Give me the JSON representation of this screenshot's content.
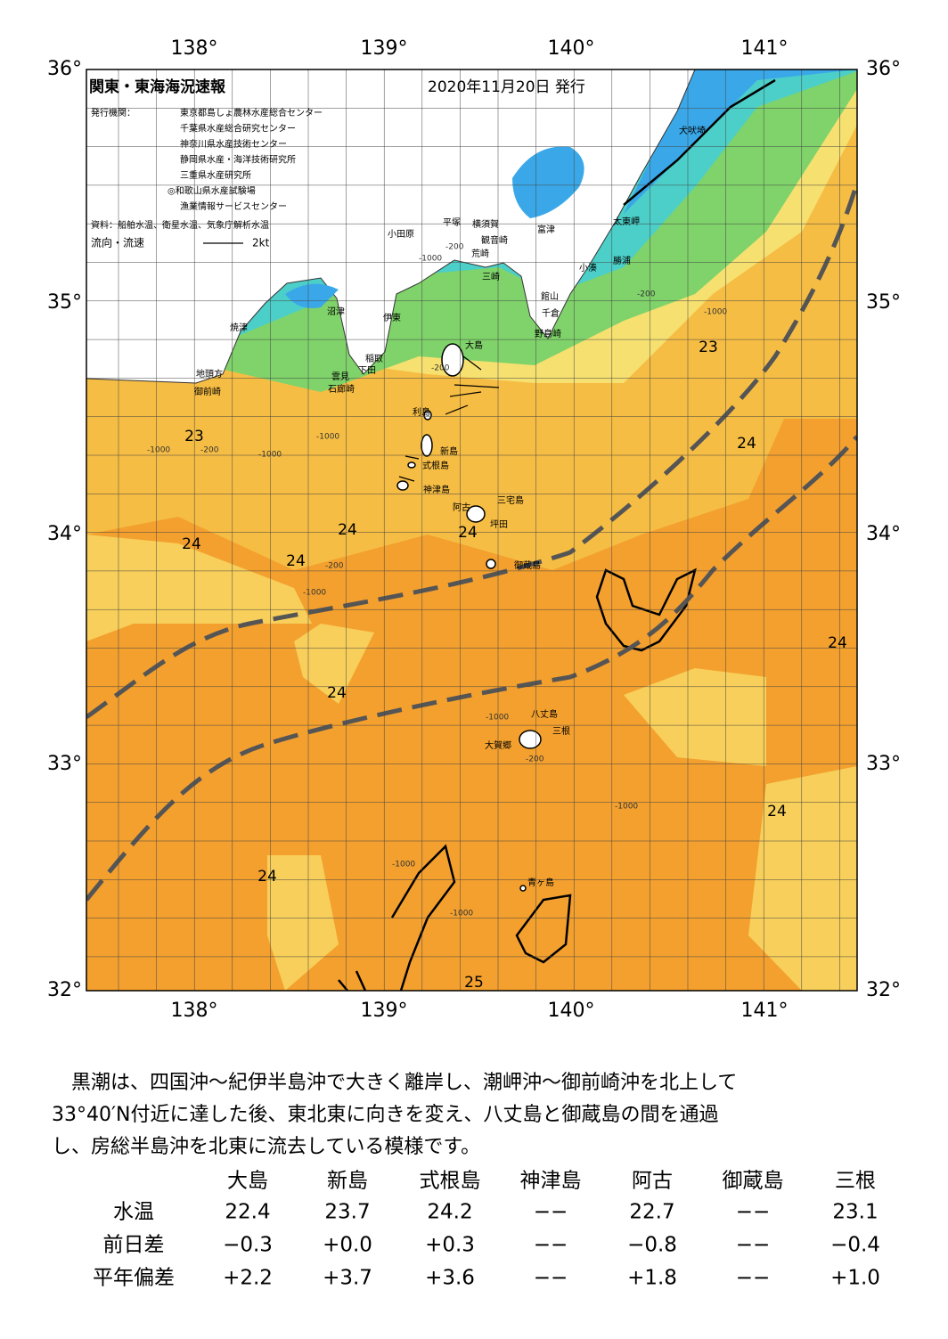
{
  "map": {
    "title": "関東・東海海況速報",
    "date": "2020年11月20日 発行",
    "issuer_label": "発行機関：",
    "issuers": [
      "東京都島しょ農林水産総合センター",
      "千葉県水産総合研究センター",
      "神奈川県水産技術センター",
      "静岡県水産・海洋技術研究所",
      "三重県水産研究所",
      "◎和歌山県水産試験場",
      "漁業情報サービスセンター"
    ],
    "source": "資料：船舶水温、衛星水温、気象庁解析水温",
    "current_label": "流向・流速",
    "current_scale": "2kt",
    "lon_labels": [
      "138°",
      "139°",
      "140°",
      "141°"
    ],
    "lat_labels": [
      "36°",
      "35°",
      "34°",
      "33°",
      "32°"
    ],
    "places": [
      "犬吠埼",
      "太東岬",
      "勝浦",
      "小湊",
      "富津",
      "横須賀",
      "観音崎",
      "平塚",
      "小田原",
      "荒崎",
      "三崎",
      "館山",
      "千倉",
      "野島崎",
      "沼津",
      "伊東",
      "焼津",
      "稲取",
      "下田",
      "雲見",
      "石廊崎",
      "地頭方",
      "御前崎",
      "大島",
      "利島",
      "新島",
      "式根島",
      "神津島",
      "三宅島",
      "阿古",
      "坪田",
      "御蔵島",
      "八丈島",
      "三根",
      "大賀郷",
      "青ヶ島"
    ],
    "temp_labels": [
      23,
      23,
      24,
      24,
      24,
      24,
      24,
      24,
      24,
      24,
      24,
      25
    ],
    "contour_labels": [
      "-1000",
      "-200",
      "-1000",
      "-200",
      "-1000",
      "-200",
      "-1000",
      "-1000",
      "-200",
      "-1000",
      "-200",
      "-1000",
      "-1000",
      "-1000",
      "-200",
      "-1000"
    ]
  },
  "text": {
    "paragraph": [
      "黒潮は、四国沖～紀伊半島沖で大きく離岸し、潮岬沖～御前崎沖を北上して",
      "33°40′N付近に達した後、東北東に向きを変え、八丈島と御蔵島の間を通過",
      "し、房総半島沖を北東に流去している模様です。"
    ]
  },
  "table": {
    "columns": [
      "大島",
      "新島",
      "式根島",
      "神津島",
      "阿古",
      "御蔵島",
      "三根"
    ],
    "rows": [
      {
        "label": "水温",
        "values": [
          "22.4",
          "23.7",
          "24.2",
          "−−",
          "22.7",
          "−−",
          "23.1"
        ]
      },
      {
        "label": "前日差",
        "values": [
          "−0.3",
          "+0.0",
          "+0.3",
          "−−",
          "−0.8",
          "−−",
          "−0.4"
        ]
      },
      {
        "label": "平年偏差",
        "values": [
          "+2.2",
          "+3.7",
          "+3.6",
          "−−",
          "+1.8",
          "−−",
          "+1.0"
        ]
      }
    ]
  }
}
